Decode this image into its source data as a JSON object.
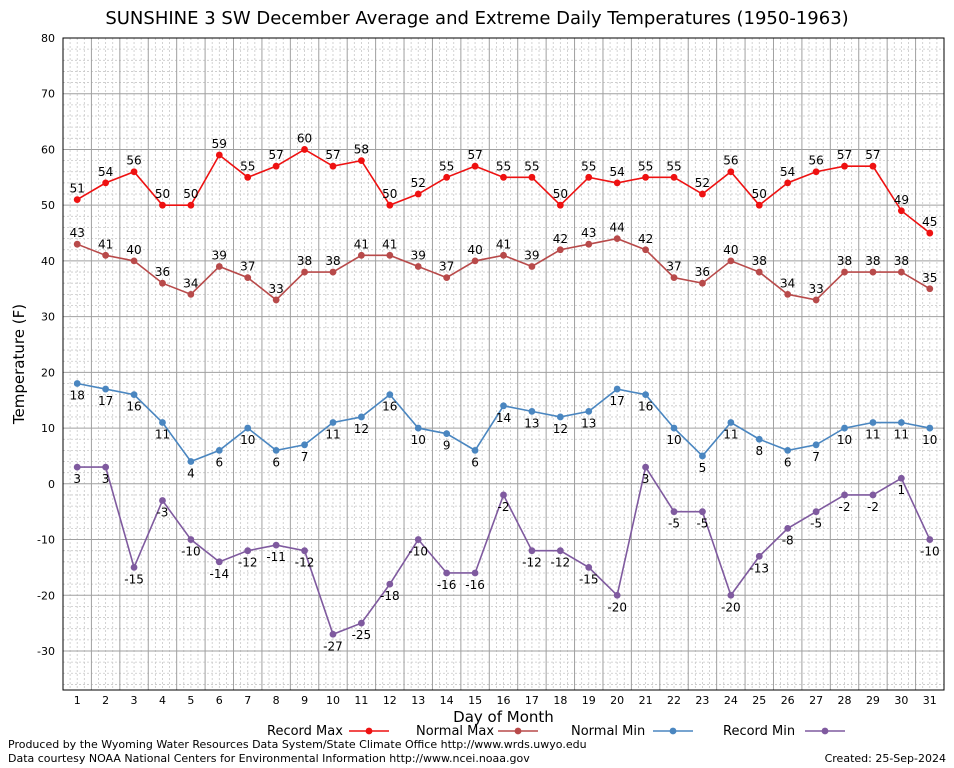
{
  "title": "SUNSHINE 3 SW December Average and Extreme Daily Temperatures (1950-1963)",
  "footer": {
    "credit1": "Produced by the Wyoming Water Resources Data System/State Climate Office http://www.wrds.uwyo.edu",
    "credit2": "Data courtesy NOAA National Centers for Environmental Information http://www.ncei.noaa.gov",
    "created": "Created: 25-Sep-2024"
  },
  "chart_data": {
    "type": "line",
    "title": "SUNSHINE 3 SW December Average and Extreme Daily Temperatures (1950-1963)",
    "xlabel": "Day of Month",
    "ylabel": "Temperature (F)",
    "ylim": [
      -37,
      80
    ],
    "yticks": [
      -30,
      -20,
      -10,
      0,
      10,
      20,
      30,
      40,
      50,
      60,
      70,
      80
    ],
    "x": [
      1,
      2,
      3,
      4,
      5,
      6,
      7,
      8,
      9,
      10,
      11,
      12,
      13,
      14,
      15,
      16,
      17,
      18,
      19,
      20,
      21,
      22,
      23,
      24,
      25,
      26,
      27,
      28,
      29,
      30,
      31
    ],
    "grid": true,
    "legend_position": "bottom",
    "series": [
      {
        "name": "Record Max",
        "color": "#ee1111",
        "label_position": "above",
        "values": [
          51,
          54,
          56,
          50,
          50,
          59,
          55,
          57,
          60,
          57,
          58,
          50,
          52,
          55,
          57,
          55,
          55,
          50,
          55,
          54,
          55,
          55,
          52,
          56,
          50,
          54,
          56,
          57,
          57,
          49,
          45
        ]
      },
      {
        "name": "Normal Max",
        "color": "#b84a4a",
        "label_position": "above",
        "values": [
          43,
          41,
          40,
          36,
          34,
          39,
          37,
          33,
          38,
          38,
          41,
          41,
          39,
          37,
          40,
          41,
          39,
          42,
          43,
          44,
          42,
          37,
          36,
          40,
          38,
          34,
          33,
          38,
          38,
          38,
          35
        ]
      },
      {
        "name": "Normal Min",
        "color": "#4a86c0",
        "label_position": "below",
        "values": [
          18,
          17,
          16,
          11,
          4,
          6,
          10,
          6,
          7,
          11,
          12,
          16,
          10,
          9,
          6,
          14,
          13,
          12,
          13,
          17,
          16,
          10,
          5,
          11,
          8,
          6,
          7,
          10,
          11,
          11,
          10
        ]
      },
      {
        "name": "Record Min",
        "color": "#7f5a9f",
        "label_position": "below",
        "values": [
          3,
          3,
          -15,
          -3,
          -10,
          -14,
          -12,
          -11,
          -12,
          -27,
          -25,
          -18,
          -10,
          -16,
          -16,
          -2,
          -12,
          -12,
          -15,
          -20,
          3,
          -5,
          -5,
          -20,
          -13,
          -8,
          -5,
          -2,
          -2,
          1,
          -10
        ]
      }
    ]
  }
}
